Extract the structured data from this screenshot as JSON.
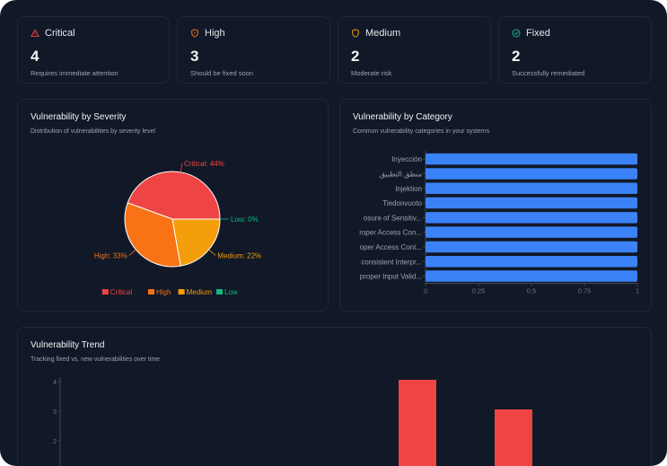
{
  "stats": [
    {
      "label": "Critical",
      "value": "4",
      "sub": "Requires immediate attention",
      "color": "#ef4444",
      "icon": "alert-triangle-icon"
    },
    {
      "label": "High",
      "value": "3",
      "sub": "Should be fixed soon",
      "color": "#f97316",
      "icon": "shield-alert-icon"
    },
    {
      "label": "Medium",
      "value": "2",
      "sub": "Moderate risk",
      "color": "#f59e0b",
      "icon": "shield-icon"
    },
    {
      "label": "Fixed",
      "value": "2",
      "sub": "Successfully remediated",
      "color": "#10b981",
      "icon": "check-circle-icon"
    }
  ],
  "severity_panel": {
    "title": "Vulnerability by Severity",
    "description": "Distribution of vulnerabilities by severity level"
  },
  "category_panel": {
    "title": "Vulnerability by Category",
    "description": "Common vulnerability categories in your systems"
  },
  "trend_panel": {
    "title": "Vulnerability Trend",
    "description": "Tracking fixed vs. new vulnerabilities over time"
  },
  "chart_data": [
    {
      "type": "pie",
      "slices": [
        {
          "name": "Critical",
          "percent": 44,
          "label": "Critical: 44%",
          "color": "#ef4444"
        },
        {
          "name": "High",
          "percent": 33,
          "label": "High: 33%",
          "color": "#f97316"
        },
        {
          "name": "Medium",
          "percent": 22,
          "label": "Medium: 22%",
          "color": "#f59e0b"
        },
        {
          "name": "Low",
          "percent": 0,
          "label": "Low: 0%",
          "color": "#10b981"
        }
      ],
      "legend": [
        "Critical",
        "High",
        "Medium",
        "Low"
      ],
      "legend_position": "bottom"
    },
    {
      "type": "bar",
      "orientation": "horizontal",
      "categories": [
        "Inyección",
        "منطق التطبيق",
        "Injektion",
        "Tiedonvuoto",
        "osure of Sensitiv...",
        "roper Access Con...",
        "oper Access Cont...",
        "consistent Interpr...",
        "proper Input Valid..."
      ],
      "values": [
        1,
        1,
        1,
        1,
        1,
        1,
        1,
        1,
        1
      ],
      "xticks": [
        "0",
        "0.25",
        "0.5",
        "0.75",
        "1"
      ],
      "xlim": [
        0,
        1
      ],
      "color": "#3b82f6"
    },
    {
      "type": "bar",
      "yticks": [
        "2",
        "3",
        "4"
      ],
      "values": [
        4,
        3
      ],
      "color": "#ef4444"
    }
  ]
}
